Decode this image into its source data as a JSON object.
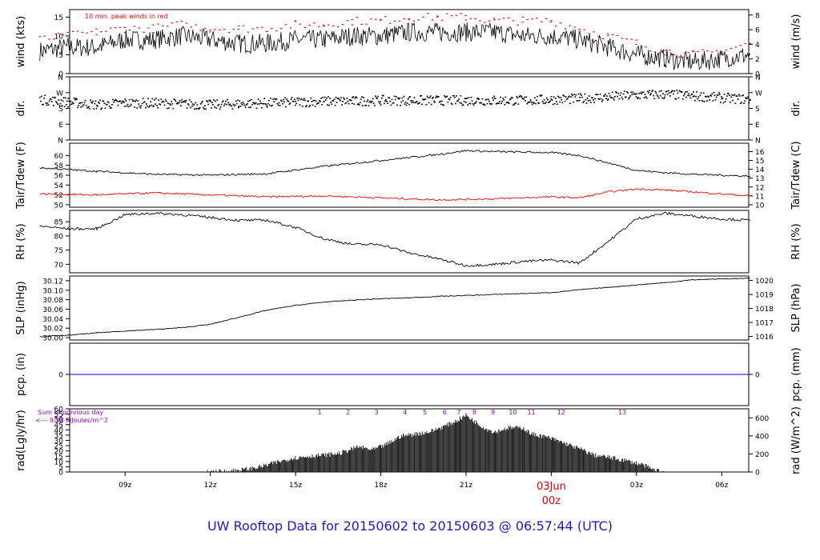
{
  "page": {
    "title": "UW Rooftop Data for 20150602  to  20150603 @ 06:57:44  (UTC)"
  },
  "colors": {
    "ink": "#000000",
    "peak": "#ff0000",
    "precip": "#0000ff",
    "purple": "#9900cc",
    "title": "#1a1acc",
    "date": "#dd0000"
  },
  "chart_data": [
    {
      "type": "line",
      "id": "wind",
      "ylabel_left": "wind (kts)",
      "ylabel_right": "wind (m/s)",
      "ylim": [
        0,
        17
      ],
      "yticks": [
        0,
        5,
        10,
        15
      ],
      "right_ylim": [
        0,
        8.75
      ],
      "right_yticks": [
        0,
        2,
        4,
        6,
        8
      ],
      "annotation": "10 min. peak winds in red",
      "series": [
        {
          "style": "line",
          "color": "#000000",
          "x": [
            6,
            7,
            8,
            9,
            10,
            11,
            12,
            13,
            14,
            15,
            16,
            17,
            18,
            19,
            20,
            21,
            22,
            23,
            24,
            25,
            26,
            27,
            28,
            29,
            30,
            31
          ],
          "y": [
            6,
            7,
            7,
            9,
            9,
            10,
            9,
            8,
            8,
            9,
            9,
            10,
            10,
            11,
            11,
            11,
            11,
            10,
            10,
            9,
            7,
            5,
            4,
            3,
            4,
            5
          ]
        },
        {
          "style": "dots",
          "color": "#ff0000",
          "x": [
            6,
            7,
            8,
            9,
            10,
            11,
            12,
            13,
            14,
            15,
            16,
            17,
            18,
            19,
            20,
            21,
            22,
            23,
            24,
            25,
            26,
            27,
            28,
            29,
            30,
            31
          ],
          "y": [
            9,
            10,
            11,
            12,
            12,
            13,
            12,
            12,
            12,
            13,
            13,
            14,
            14,
            15,
            15,
            15,
            14,
            14,
            14,
            12,
            10,
            8,
            6,
            5,
            6,
            8
          ]
        }
      ]
    },
    {
      "type": "scatter",
      "id": "dir",
      "ylabel_left": "dir.",
      "ylabel_right": "dir.",
      "ylim": [
        0,
        360
      ],
      "ytick_values": [
        0,
        90,
        180,
        270,
        360
      ],
      "ytick_labels": [
        "N",
        "E",
        "S",
        "W",
        "N"
      ],
      "x": [
        6,
        7,
        8,
        9,
        10,
        11,
        12,
        13,
        14,
        15,
        16,
        17,
        18,
        19,
        20,
        21,
        22,
        23,
        24,
        25,
        26,
        27,
        28,
        29,
        30,
        31
      ],
      "y": [
        230,
        215,
        200,
        210,
        210,
        205,
        200,
        205,
        210,
        215,
        220,
        220,
        225,
        225,
        225,
        225,
        225,
        225,
        230,
        235,
        245,
        255,
        260,
        250,
        240,
        230
      ]
    },
    {
      "type": "line",
      "id": "temp",
      "ylabel_left": "Tair/Tdew (F)",
      "ylabel_right": "Tair/Tdew (C)",
      "ylim": [
        49.5,
        62.5
      ],
      "yticks": [
        50,
        52,
        54,
        56,
        58,
        60
      ],
      "right_yticks": [
        10,
        11,
        12,
        13,
        14,
        15,
        16
      ],
      "series": [
        {
          "name": "Tair",
          "color": "#000000",
          "x": [
            6,
            8,
            10,
            12,
            14,
            16,
            18,
            20,
            21,
            22,
            24,
            25,
            26,
            27,
            28,
            29,
            30,
            31
          ],
          "y": [
            57.5,
            56.8,
            56.2,
            56.0,
            56.3,
            57.8,
            59.0,
            60.2,
            61.0,
            60.8,
            60.6,
            60.0,
            58.5,
            57.0,
            56.5,
            56.2,
            56.0,
            55.8
          ]
        },
        {
          "name": "Tdew",
          "color": "#ff0000",
          "x": [
            6,
            8,
            10,
            12,
            14,
            16,
            18,
            20,
            22,
            24,
            25,
            26,
            27,
            28,
            29,
            30,
            31
          ],
          "y": [
            52.2,
            52.0,
            52.4,
            52.0,
            51.6,
            51.8,
            51.4,
            51.0,
            51.2,
            51.6,
            51.4,
            52.6,
            53.2,
            53.0,
            52.6,
            52.2,
            51.8
          ]
        }
      ]
    },
    {
      "type": "line",
      "id": "rh",
      "ylabel_left": "RH (%)",
      "ylabel_right": "RH (%)",
      "ylim": [
        67,
        89
      ],
      "yticks": [
        70,
        75,
        80,
        85
      ],
      "x": [
        6,
        7,
        8,
        9,
        10,
        11,
        12,
        13,
        14,
        15,
        16,
        17,
        18,
        19,
        20,
        21,
        22,
        23,
        24,
        25,
        26,
        27,
        28,
        29,
        30,
        31
      ],
      "y": [
        83.5,
        82.5,
        82.5,
        87.5,
        88,
        87.5,
        86.5,
        85.5,
        85.5,
        83,
        79,
        77,
        77,
        74,
        72,
        69.5,
        70,
        71,
        71.5,
        70.5,
        78,
        86,
        88,
        87,
        86,
        85.5
      ]
    },
    {
      "type": "line",
      "id": "slp",
      "ylabel_left": "SLP (inHg)",
      "ylabel_right": "SLP (hPa)",
      "ylim": [
        29.995,
        30.13
      ],
      "yticks": [
        30.0,
        30.02,
        30.04,
        30.06,
        30.08,
        30.1,
        30.12
      ],
      "right_yticks": [
        1016,
        1017,
        1018,
        1019,
        1020
      ],
      "x": [
        6,
        7,
        8,
        9,
        10,
        11,
        12,
        13,
        14,
        15,
        16,
        17,
        18,
        19,
        20,
        21,
        22,
        23,
        24,
        25,
        26,
        27,
        28,
        29,
        30,
        31
      ],
      "y": [
        30.002,
        30.005,
        30.01,
        30.014,
        30.017,
        30.021,
        30.028,
        30.043,
        30.058,
        30.068,
        30.075,
        30.079,
        30.082,
        30.084,
        30.087,
        30.089,
        30.091,
        30.093,
        30.095,
        30.101,
        30.106,
        30.111,
        30.116,
        30.122,
        30.124,
        30.125
      ]
    },
    {
      "type": "line",
      "id": "pcp",
      "ylabel_left": "pcp. (in)",
      "ylabel_right": "pcp. (mm)",
      "ylim": [
        -1,
        1
      ],
      "yticks": [
        0
      ],
      "right_yticks": [
        0
      ],
      "x": [
        6,
        31
      ],
      "y": [
        0,
        0
      ],
      "color": "#0000ff"
    },
    {
      "type": "area",
      "id": "rad",
      "ylabel_left": "rad(Lgly/hr)",
      "ylabel_right": "rad (W/m^2)",
      "ylim": [
        0,
        60
      ],
      "yticks": [
        0,
        5,
        10,
        15,
        20,
        25,
        30,
        35,
        40,
        45,
        50,
        55,
        60
      ],
      "right_yticks": [
        0,
        200,
        400,
        600
      ],
      "note_line1": "Sum of previous day",
      "note_line2": "<--- 9.38 MJoules/m^2",
      "hour_labels": [
        "1",
        "2",
        "3",
        "4",
        "5",
        "6",
        "7",
        "8",
        "9",
        "10",
        "11",
        "12",
        "13"
      ],
      "hour_x": [
        15.85,
        16.85,
        17.85,
        18.85,
        19.55,
        20.25,
        20.75,
        21.3,
        21.95,
        22.65,
        23.3,
        24.35,
        26.5
      ],
      "x": [
        11.9,
        12.7,
        13.4,
        13.9,
        14.3,
        14.9,
        15.5,
        16.0,
        16.6,
        17.2,
        17.7,
        18.2,
        18.7,
        19.2,
        19.7,
        20.2,
        20.7,
        21.0,
        21.3,
        21.7,
        22.0,
        22.5,
        23.0,
        23.3,
        23.7,
        24.1,
        24.6,
        25.1,
        25.5,
        26.0,
        26.6,
        27.2,
        27.6,
        28.0
      ],
      "y": [
        0,
        1,
        3,
        6,
        9,
        13,
        15,
        16,
        18,
        24,
        21,
        26,
        34,
        36,
        38,
        43,
        49,
        54,
        48,
        41,
        38,
        42,
        42,
        36,
        34,
        31,
        26,
        21,
        16,
        14,
        11,
        7,
        2,
        0
      ]
    }
  ],
  "x_axis": {
    "tick_labels": [
      "09z",
      "12z",
      "15z",
      "18z",
      "21z",
      "03z",
      "06z"
    ],
    "tick_x": [
      9,
      12,
      15,
      18,
      21,
      27,
      30
    ],
    "minor_x": [
      24
    ],
    "date_label": "03Jun",
    "date_sub": "00z",
    "date_x": 24,
    "xlim": [
      7.05,
      30.95
    ]
  }
}
